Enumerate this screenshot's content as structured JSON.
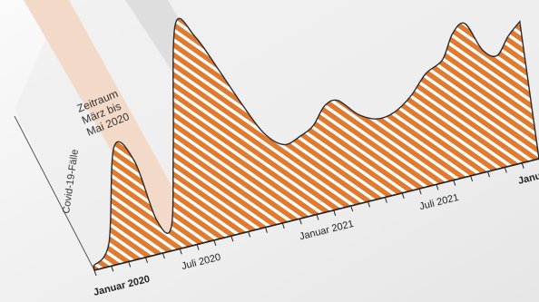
{
  "chart_data": {
    "type": "area",
    "ylabel": "Covid-19-Fälle",
    "highlight_band": {
      "label_lines": [
        "Zeitraum",
        "März bis",
        "Mai 2020"
      ],
      "color": "#f2d9c8"
    },
    "x_tick_labels": [
      {
        "text": "Januar",
        "extra": "2020",
        "t": 0.0
      },
      {
        "text": "Juli 2020",
        "t": 0.235
      },
      {
        "text": "Januar 2021",
        "t": 0.5
      },
      {
        "text": "Juli 2021",
        "t": 0.77
      },
      {
        "text": "Januar",
        "t": 1.0
      }
    ],
    "x": [
      0.0,
      0.04,
      0.08,
      0.12,
      0.15,
      0.18,
      0.21,
      0.25,
      0.29,
      0.33,
      0.37,
      0.41,
      0.45,
      0.49,
      0.52,
      0.55,
      0.58,
      0.62,
      0.66,
      0.7,
      0.74,
      0.78,
      0.82,
      0.85,
      0.88,
      0.91,
      0.94,
      0.97,
      1.0
    ],
    "y": [
      0.02,
      0.1,
      0.5,
      0.42,
      0.15,
      0.1,
      0.45,
      0.95,
      0.88,
      0.72,
      0.55,
      0.4,
      0.33,
      0.35,
      0.38,
      0.45,
      0.46,
      0.38,
      0.34,
      0.35,
      0.4,
      0.48,
      0.52,
      0.62,
      0.65,
      0.52,
      0.48,
      0.55,
      0.6
    ],
    "fill_color": "#e07a2e",
    "stripe_color": "#ffffff",
    "outline_color": "#2b2b2b"
  }
}
